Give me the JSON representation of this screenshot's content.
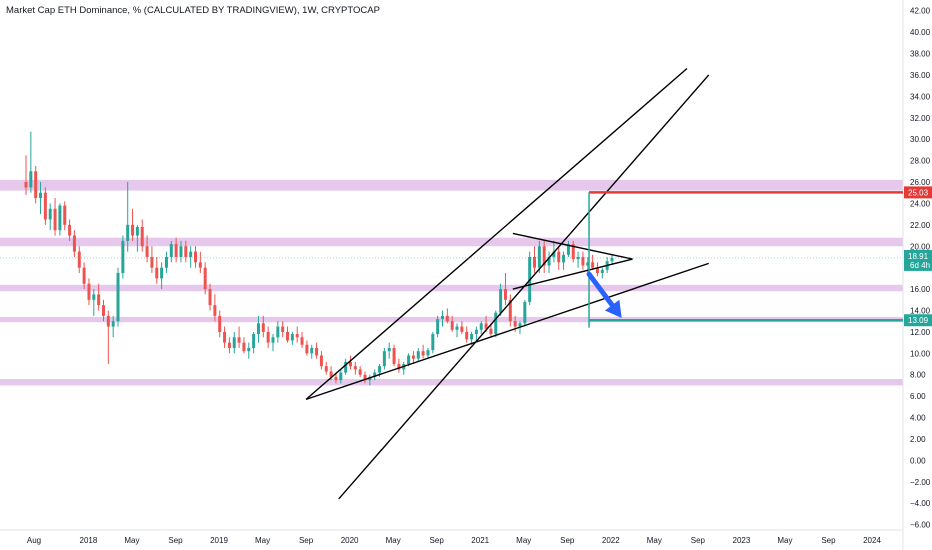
{
  "header": {
    "title": "Market Cap ETH Dominance, % (CALCULATED BY TRADINGVIEW), 1W, CRYPTOCAP"
  },
  "colors": {
    "up": "#26a69a",
    "down": "#ef5350",
    "zone": "#e1bee7",
    "target_up": "#e53935",
    "target_down": "#26a69a",
    "arrow": "#2962ff",
    "price_tag": "#26a69a"
  },
  "chart_data": {
    "type": "candlestick",
    "title": "Market Cap ETH Dominance, % (CALCULATED BY TRADINGVIEW), 1W, CRYPTOCAP",
    "xlabel": "",
    "ylabel": "",
    "ylim": [
      -6.5,
      43
    ],
    "y_ticks": [
      42,
      40,
      38,
      36,
      34,
      32,
      30,
      28,
      26,
      24,
      22,
      20,
      18,
      16,
      14,
      12,
      10,
      8,
      6,
      4,
      2,
      0,
      -2,
      -4,
      -6
    ],
    "y_tick_labels": [
      "42.00",
      "40.00",
      "38.00",
      "36.00",
      "34.00",
      "32.00",
      "30.00",
      "28.00",
      "26.00",
      "24.00",
      "22.00",
      "20.00",
      "18.00",
      "16.00",
      "14.00",
      "12.00",
      "10.00",
      "8.00",
      "6.00",
      "4.00",
      "2.00",
      "0.00",
      "−2.00",
      "−4.00",
      "−6.00"
    ],
    "x_ticks": [
      {
        "label": "Aug",
        "date": "2017-08"
      },
      {
        "label": "2018",
        "date": "2018-01"
      },
      {
        "label": "May",
        "date": "2018-05"
      },
      {
        "label": "Sep",
        "date": "2018-09"
      },
      {
        "label": "2019",
        "date": "2019-01"
      },
      {
        "label": "May",
        "date": "2019-05"
      },
      {
        "label": "Sep",
        "date": "2019-09"
      },
      {
        "label": "2020",
        "date": "2020-01"
      },
      {
        "label": "May",
        "date": "2020-05"
      },
      {
        "label": "Sep",
        "date": "2020-09"
      },
      {
        "label": "2021",
        "date": "2021-01"
      },
      {
        "label": "May",
        "date": "2021-05"
      },
      {
        "label": "Sep",
        "date": "2021-09"
      },
      {
        "label": "2022",
        "date": "2022-01"
      },
      {
        "label": "May",
        "date": "2022-05"
      },
      {
        "label": "Sep",
        "date": "2022-09"
      },
      {
        "label": "2023",
        "date": "2023-01"
      },
      {
        "label": "May",
        "date": "2023-05"
      },
      {
        "label": "Sep",
        "date": "2023-09"
      },
      {
        "label": "2024",
        "date": "2024-01"
      }
    ],
    "zones": [
      {
        "from": 25.2,
        "to": 26.2
      },
      {
        "from": 20.0,
        "to": 20.8
      },
      {
        "from": 15.8,
        "to": 16.4
      },
      {
        "from": 12.9,
        "to": 13.4
      },
      {
        "from": 7.0,
        "to": 7.6
      }
    ],
    "price_levels": [
      {
        "value": 25.03,
        "label": "25.03",
        "kind": "target_up",
        "from_date": "2021-11",
        "to_date": "2024-05"
      },
      {
        "value": 13.09,
        "label": "13.09",
        "kind": "target_down",
        "from_date": "2021-11",
        "to_date": "2024-05"
      }
    ],
    "current_price": {
      "value": 18.91,
      "label": "18.91",
      "countdown": "6d 4h"
    },
    "trendlines": [
      {
        "x1": "2019-09",
        "y1": 5.7,
        "x2": "2022-08",
        "y2": 36.6
      },
      {
        "x1": "2019-09",
        "y1": 5.7,
        "x2": "2022-10",
        "y2": 18.4
      },
      {
        "x1": "2019-12",
        "y1": -3.6,
        "x2": "2022-10",
        "y2": 36.0
      },
      {
        "x1": "2021-04",
        "y1": 21.2,
        "x2": "2022-03",
        "y2": 18.8
      },
      {
        "x1": "2021-04",
        "y1": 16.0,
        "x2": "2022-03",
        "y2": 18.8
      }
    ],
    "measure_vertical": [
      {
        "date": "2021-11",
        "from": 17.2,
        "to": 25.03,
        "kind": "up"
      },
      {
        "date": "2021-11",
        "from": 17.2,
        "to": 12.4,
        "kind": "down"
      }
    ],
    "forecast_arrow": {
      "x1": "2021-11",
      "y1": 17.4,
      "x2": "2022-02",
      "y2": 13.3
    },
    "candles_ohlc": [
      [
        26.0,
        28.5,
        24.8,
        25.5
      ],
      [
        25.5,
        30.7,
        25.0,
        27.0
      ],
      [
        27.0,
        27.5,
        24.0,
        24.5
      ],
      [
        24.5,
        26.0,
        23.0,
        25.0
      ],
      [
        25.0,
        25.5,
        22.0,
        22.5
      ],
      [
        22.5,
        24.0,
        21.5,
        23.5
      ],
      [
        23.5,
        24.5,
        21.0,
        21.5
      ],
      [
        21.5,
        24.0,
        21.0,
        23.8
      ],
      [
        23.8,
        24.2,
        21.5,
        22.0
      ],
      [
        22.0,
        22.5,
        20.5,
        21.0
      ],
      [
        21.0,
        21.5,
        19.0,
        19.5
      ],
      [
        19.5,
        20.0,
        17.5,
        18.0
      ],
      [
        18.0,
        18.5,
        16.0,
        16.5
      ],
      [
        16.5,
        17.0,
        14.5,
        15.0
      ],
      [
        15.0,
        16.0,
        13.5,
        15.5
      ],
      [
        15.5,
        16.5,
        14.0,
        14.5
      ],
      [
        14.5,
        15.0,
        13.0,
        13.5
      ],
      [
        13.5,
        14.0,
        9.0,
        12.5
      ],
      [
        12.5,
        13.5,
        11.5,
        13.0
      ],
      [
        13.0,
        18.0,
        12.5,
        17.5
      ],
      [
        17.5,
        21.0,
        17.0,
        20.5
      ],
      [
        20.5,
        26.0,
        19.5,
        22.0
      ],
      [
        22.0,
        23.5,
        20.5,
        21.0
      ],
      [
        21.0,
        22.0,
        19.5,
        21.8
      ],
      [
        21.8,
        22.5,
        19.5,
        20.0
      ],
      [
        20.0,
        21.0,
        18.5,
        19.0
      ],
      [
        19.0,
        20.0,
        17.5,
        18.0
      ],
      [
        18.0,
        19.0,
        16.5,
        17.0
      ],
      [
        17.0,
        18.5,
        16.0,
        18.0
      ],
      [
        18.0,
        19.5,
        17.5,
        19.0
      ],
      [
        19.0,
        20.5,
        18.5,
        20.2
      ],
      [
        20.2,
        20.8,
        18.5,
        19.0
      ],
      [
        19.0,
        20.5,
        18.5,
        20.0
      ],
      [
        20.0,
        20.5,
        18.5,
        19.0
      ],
      [
        19.0,
        20.0,
        18.0,
        19.5
      ],
      [
        19.5,
        20.0,
        18.0,
        18.5
      ],
      [
        18.5,
        19.5,
        17.5,
        18.0
      ],
      [
        18.0,
        18.5,
        15.5,
        16.0
      ],
      [
        16.0,
        16.5,
        14.0,
        14.5
      ],
      [
        14.5,
        15.5,
        13.0,
        13.5
      ],
      [
        13.5,
        14.0,
        11.5,
        12.0
      ],
      [
        12.0,
        12.5,
        10.5,
        11.0
      ],
      [
        11.0,
        11.5,
        10.0,
        10.5
      ],
      [
        10.5,
        12.0,
        10.0,
        11.5
      ],
      [
        11.5,
        12.5,
        10.5,
        11.0
      ],
      [
        11.0,
        11.5,
        10.0,
        10.2
      ],
      [
        10.2,
        11.0,
        9.5,
        10.5
      ],
      [
        10.5,
        12.0,
        10.0,
        11.8
      ],
      [
        11.8,
        13.5,
        11.0,
        12.8
      ],
      [
        12.8,
        13.5,
        11.5,
        12.0
      ],
      [
        12.0,
        12.5,
        10.5,
        11.0
      ],
      [
        11.0,
        11.8,
        10.2,
        11.5
      ],
      [
        11.5,
        13.0,
        11.0,
        12.5
      ],
      [
        12.5,
        13.0,
        11.5,
        12.0
      ],
      [
        12.0,
        12.5,
        11.0,
        11.2
      ],
      [
        11.2,
        12.0,
        10.8,
        11.8
      ],
      [
        11.8,
        12.5,
        11.0,
        11.5
      ],
      [
        11.5,
        12.0,
        10.5,
        10.8
      ],
      [
        10.8,
        11.2,
        9.8,
        10.0
      ],
      [
        10.0,
        10.8,
        9.5,
        10.5
      ],
      [
        10.5,
        11.0,
        9.5,
        9.8
      ],
      [
        9.8,
        10.2,
        8.5,
        8.8
      ],
      [
        8.8,
        9.2,
        8.0,
        8.3
      ],
      [
        8.3,
        8.8,
        7.5,
        7.8
      ],
      [
        7.8,
        8.2,
        7.2,
        7.5
      ],
      [
        7.5,
        8.5,
        7.2,
        8.2
      ],
      [
        8.2,
        9.5,
        8.0,
        9.2
      ],
      [
        9.2,
        9.8,
        8.5,
        8.8
      ],
      [
        8.8,
        9.2,
        8.0,
        8.5
      ],
      [
        8.5,
        8.8,
        7.8,
        8.0
      ],
      [
        8.0,
        8.3,
        7.2,
        7.5
      ],
      [
        7.5,
        8.0,
        7.0,
        7.8
      ],
      [
        7.8,
        8.5,
        7.5,
        8.2
      ],
      [
        8.2,
        9.0,
        7.8,
        8.8
      ],
      [
        8.8,
        10.5,
        8.5,
        10.2
      ],
      [
        10.2,
        11.0,
        9.5,
        10.5
      ],
      [
        10.5,
        10.8,
        8.8,
        9.0
      ],
      [
        9.0,
        9.5,
        8.2,
        8.5
      ],
      [
        8.5,
        9.2,
        8.0,
        9.0
      ],
      [
        9.0,
        10.0,
        8.8,
        9.8
      ],
      [
        9.8,
        10.2,
        9.0,
        9.5
      ],
      [
        9.5,
        10.5,
        9.2,
        10.2
      ],
      [
        10.2,
        10.8,
        9.5,
        9.8
      ],
      [
        9.8,
        10.5,
        9.5,
        10.3
      ],
      [
        10.3,
        12.0,
        10.0,
        11.8
      ],
      [
        11.8,
        13.5,
        11.5,
        13.2
      ],
      [
        13.2,
        14.0,
        12.5,
        13.5
      ],
      [
        13.5,
        14.2,
        12.8,
        13.0
      ],
      [
        13.0,
        13.5,
        12.0,
        12.2
      ],
      [
        12.2,
        12.8,
        11.5,
        12.5
      ],
      [
        12.5,
        13.0,
        11.8,
        12.0
      ],
      [
        12.0,
        12.5,
        11.0,
        11.3
      ],
      [
        11.3,
        12.0,
        10.8,
        11.8
      ],
      [
        11.8,
        12.5,
        11.2,
        12.2
      ],
      [
        12.2,
        13.0,
        11.8,
        12.8
      ],
      [
        12.8,
        13.5,
        12.0,
        12.3
      ],
      [
        12.3,
        12.8,
        11.5,
        11.8
      ],
      [
        11.8,
        14.0,
        11.5,
        13.8
      ],
      [
        13.8,
        16.5,
        13.5,
        16.0
      ],
      [
        16.0,
        17.5,
        14.5,
        15.0
      ],
      [
        15.0,
        15.5,
        12.5,
        13.0
      ],
      [
        13.0,
        13.5,
        12.0,
        12.5
      ],
      [
        12.5,
        13.0,
        11.8,
        12.8
      ],
      [
        12.8,
        15.0,
        12.5,
        14.8
      ],
      [
        14.8,
        19.5,
        14.5,
        19.0
      ],
      [
        19.0,
        20.0,
        17.5,
        18.0
      ],
      [
        18.0,
        20.5,
        17.5,
        20.0
      ],
      [
        20.0,
        20.5,
        17.5,
        18.2
      ],
      [
        18.2,
        19.5,
        17.5,
        19.0
      ],
      [
        19.0,
        20.5,
        18.5,
        19.5
      ],
      [
        19.5,
        20.0,
        17.8,
        18.5
      ],
      [
        18.5,
        19.5,
        17.8,
        19.2
      ],
      [
        19.2,
        20.5,
        19.0,
        20.2
      ],
      [
        20.2,
        20.5,
        18.5,
        18.8
      ],
      [
        18.8,
        19.5,
        18.0,
        19.0
      ],
      [
        19.0,
        19.5,
        17.8,
        18.2
      ],
      [
        18.2,
        19.0,
        17.5,
        18.5
      ],
      [
        18.5,
        19.2,
        17.8,
        18.0
      ],
      [
        18.0,
        18.5,
        17.2,
        17.5
      ],
      [
        17.5,
        18.0,
        17.0,
        17.8
      ],
      [
        17.8,
        19.0,
        17.5,
        18.6
      ],
      [
        18.6,
        19.2,
        18.3,
        18.91
      ]
    ]
  }
}
